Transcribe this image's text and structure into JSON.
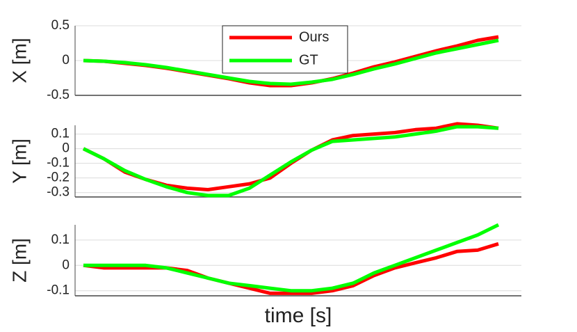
{
  "chart_data": [
    {
      "type": "line",
      "ylabel": "X [m]",
      "categories": [
        null,
        null,
        null,
        null,
        null,
        null,
        null,
        null,
        null,
        null,
        null,
        null,
        null,
        null,
        null,
        null,
        null,
        null,
        null,
        null,
        null
      ],
      "series": [
        {
          "name": "Ours",
          "color": "#ff0000",
          "values": [
            0,
            -0.01,
            -0.04,
            -0.07,
            -0.11,
            -0.16,
            -0.21,
            -0.26,
            -0.32,
            -0.36,
            -0.36,
            -0.32,
            -0.26,
            -0.18,
            -0.09,
            -0.02,
            0.06,
            0.14,
            0.21,
            0.29,
            0.34
          ]
        },
        {
          "name": "GT",
          "color": "#00ff00",
          "values": [
            0,
            -0.01,
            -0.03,
            -0.06,
            -0.1,
            -0.15,
            -0.2,
            -0.25,
            -0.3,
            -0.33,
            -0.34,
            -0.31,
            -0.27,
            -0.2,
            -0.12,
            -0.05,
            0.03,
            0.11,
            0.17,
            0.23,
            0.29
          ]
        }
      ],
      "ylim": [
        -0.5,
        0.5
      ],
      "yticks": [
        0.5,
        0,
        -0.5
      ],
      "grid": true,
      "legend": "north"
    },
    {
      "type": "line",
      "ylabel": "Y [m]",
      "categories": [
        null,
        null,
        null,
        null,
        null,
        null,
        null,
        null,
        null,
        null,
        null,
        null,
        null,
        null,
        null,
        null,
        null,
        null,
        null,
        null,
        null
      ],
      "series": [
        {
          "name": "Ours",
          "color": "#ff0000",
          "values": [
            0,
            -0.07,
            -0.16,
            -0.21,
            -0.25,
            -0.27,
            -0.28,
            -0.26,
            -0.24,
            -0.2,
            -0.1,
            -0.01,
            0.06,
            0.09,
            0.1,
            0.11,
            0.13,
            0.14,
            0.17,
            0.16,
            0.14
          ]
        },
        {
          "name": "GT",
          "color": "#00ff00",
          "values": [
            0,
            -0.07,
            -0.15,
            -0.21,
            -0.26,
            -0.3,
            -0.32,
            -0.32,
            -0.27,
            -0.18,
            -0.09,
            -0.01,
            0.05,
            0.06,
            0.07,
            0.08,
            0.1,
            0.12,
            0.15,
            0.15,
            0.14
          ]
        }
      ],
      "ylim": [
        -0.33,
        0.16
      ],
      "yticks": [
        0.1,
        0,
        -0.1,
        -0.2,
        -0.3
      ],
      "grid": true
    },
    {
      "type": "line",
      "ylabel": "Z [m]",
      "xlabel": "time [s]",
      "categories": [
        null,
        null,
        null,
        null,
        null,
        null,
        null,
        null,
        null,
        null,
        null,
        null,
        null,
        null,
        null,
        null,
        null,
        null,
        null,
        null,
        null
      ],
      "series": [
        {
          "name": "Ours",
          "color": "#ff0000",
          "values": [
            0,
            -0.01,
            -0.01,
            -0.01,
            -0.01,
            -0.02,
            -0.05,
            -0.07,
            -0.09,
            -0.11,
            -0.11,
            -0.11,
            -0.1,
            -0.08,
            -0.04,
            -0.01,
            0.01,
            0.03,
            0.055,
            0.06,
            0.085
          ]
        },
        {
          "name": "GT",
          "color": "#00ff00",
          "values": [
            0,
            0,
            0,
            0,
            -0.01,
            -0.03,
            -0.05,
            -0.07,
            -0.08,
            -0.09,
            -0.1,
            -0.1,
            -0.09,
            -0.07,
            -0.03,
            0,
            0.03,
            0.06,
            0.09,
            0.12,
            0.16
          ]
        }
      ],
      "ylim": [
        -0.12,
        0.16
      ],
      "yticks": [
        0.1,
        0,
        -0.1
      ],
      "grid": true
    }
  ]
}
